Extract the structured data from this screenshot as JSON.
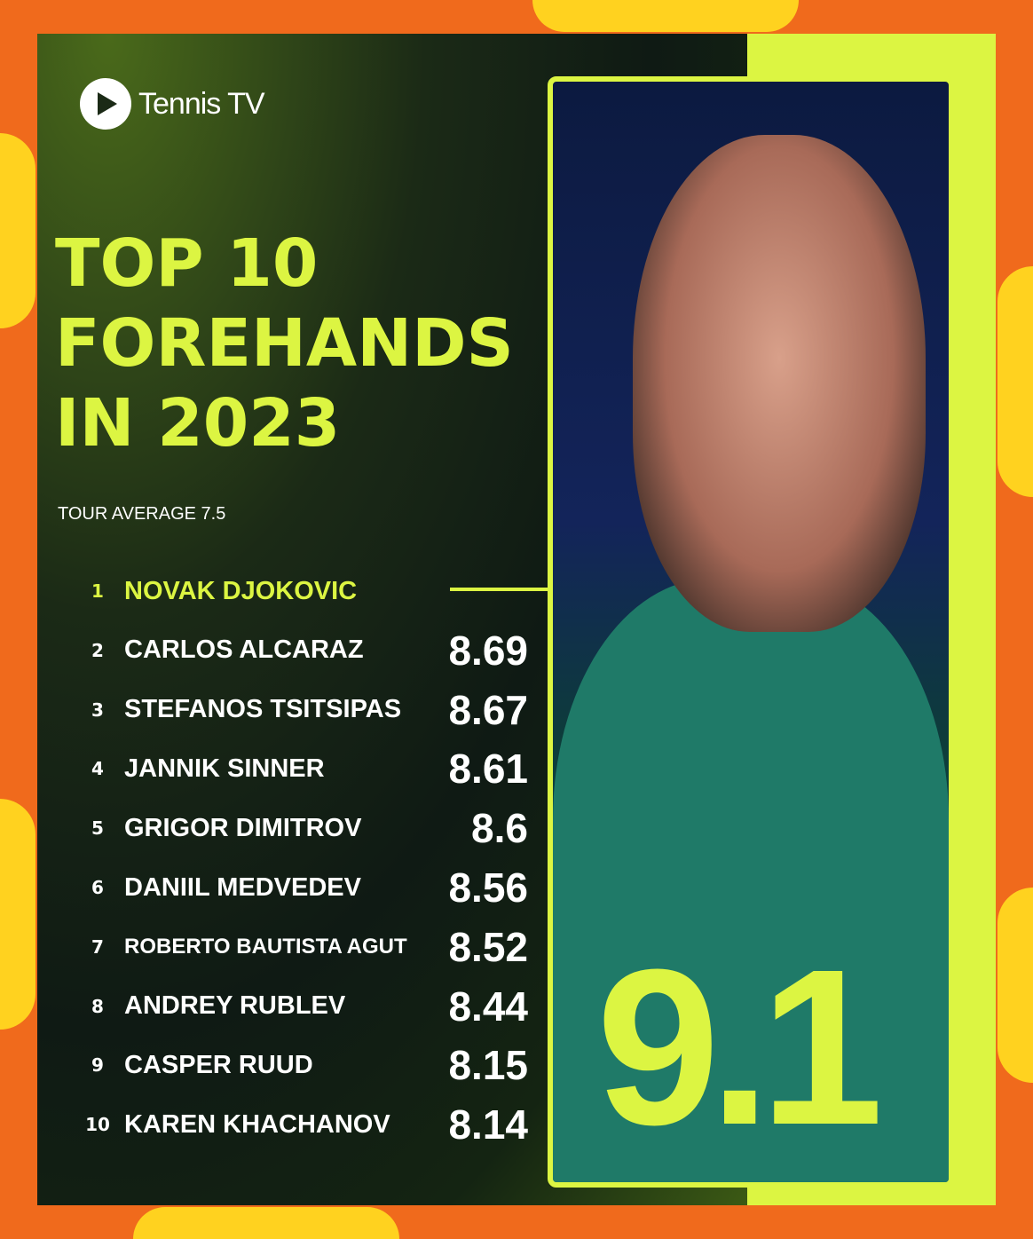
{
  "brand": "Tennis TV",
  "title_lines": [
    "TOP 10",
    "FOREHANDS",
    "IN 2023"
  ],
  "subtitle": "TOUR AVERAGE 7.5",
  "colors": {
    "accent": "#dcf542",
    "background": "#f06a1c",
    "panel": "#0f1a14"
  },
  "highlight_value": "9.1",
  "chart_data": {
    "type": "table",
    "title": "TOP 10 FOREHANDS IN 2023",
    "subtitle": "TOUR AVERAGE 7.5",
    "rows": [
      {
        "rank": "1",
        "name": "NOVAK DJOKOVIC",
        "value": "9.1"
      },
      {
        "rank": "2",
        "name": "CARLOS ALCARAZ",
        "value": "8.69"
      },
      {
        "rank": "3",
        "name": "STEFANOS TSITSIPAS",
        "value": "8.67"
      },
      {
        "rank": "4",
        "name": "JANNIK SINNER",
        "value": "8.61"
      },
      {
        "rank": "5",
        "name": "GRIGOR DIMITROV",
        "value": "8.6"
      },
      {
        "rank": "6",
        "name": "DANIIL MEDVEDEV",
        "value": "8.56"
      },
      {
        "rank": "7",
        "name": "ROBERTO BAUTISTA AGUT",
        "value": "8.52"
      },
      {
        "rank": "8",
        "name": "ANDREY RUBLEV",
        "value": "8.44"
      },
      {
        "rank": "9",
        "name": "CASPER RUUD",
        "value": "8.15"
      },
      {
        "rank": "10",
        "name": "KAREN KHACHANOV",
        "value": "8.14"
      }
    ]
  }
}
